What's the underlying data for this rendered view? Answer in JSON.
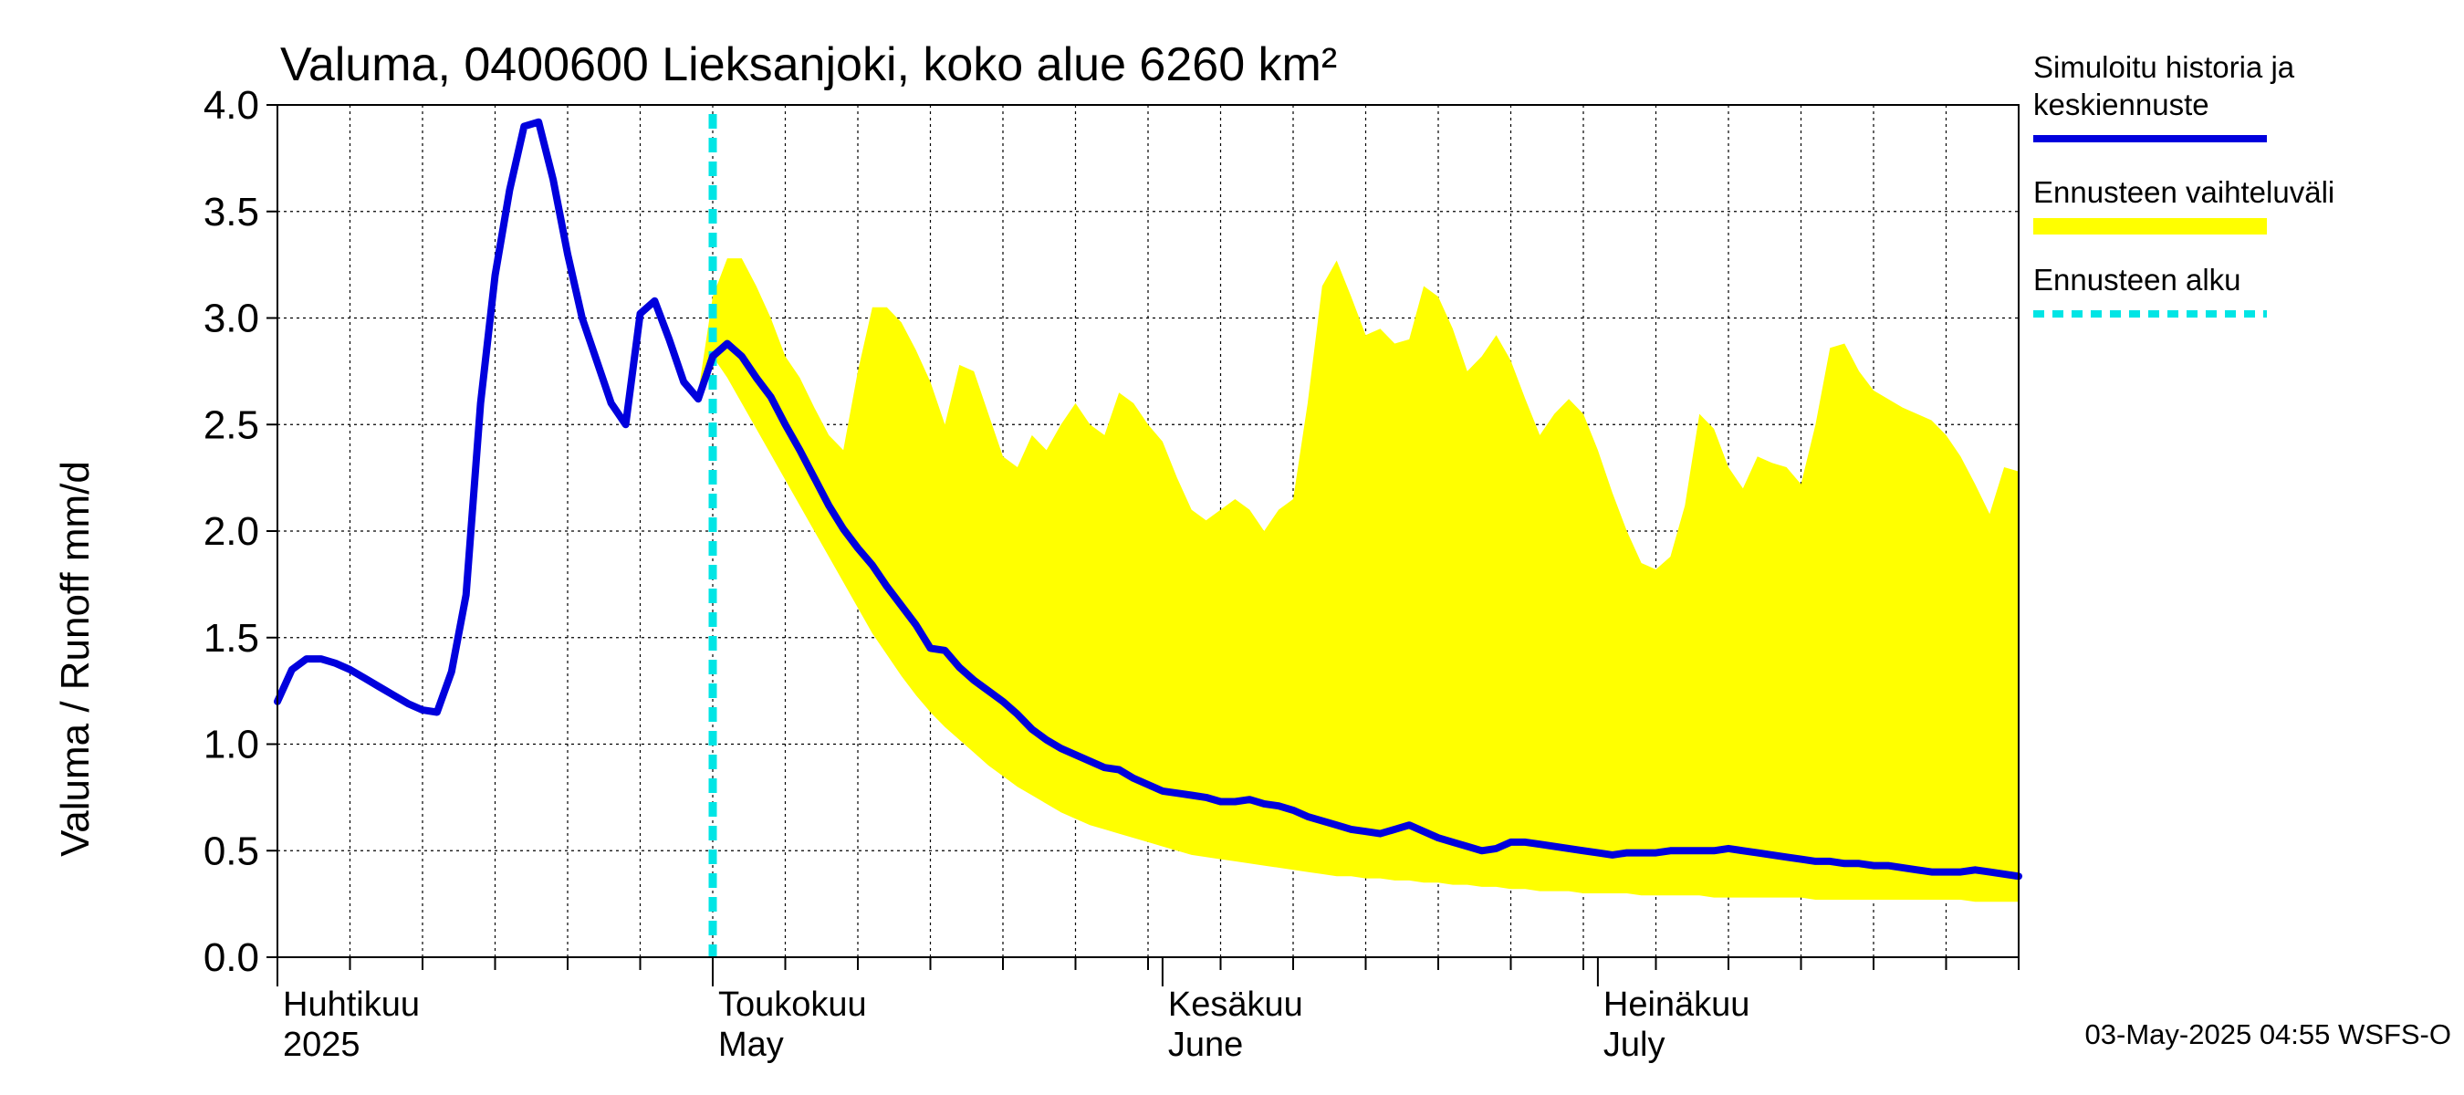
{
  "chart_data": {
    "type": "area",
    "title": "Valuma, 0400600 Lieksanjoki, koko alue 6260 km²",
    "ylabel": "Valuma / Runoff     mm/d",
    "xlabel": "",
    "ylim": [
      0,
      4
    ],
    "yticks": [
      "0.0",
      "0.5",
      "1.0",
      "1.5",
      "2.0",
      "2.5",
      "3.0",
      "3.5",
      "4.0"
    ],
    "x_unit": "day offset from 2025-03-26",
    "x_range": [
      0,
      120
    ],
    "forecast_start_day": 30,
    "month_labels": [
      {
        "day": 0,
        "fi": "Huhtikuu",
        "en": "2025"
      },
      {
        "day": 30,
        "fi": "Toukokuu",
        "en": "May"
      },
      {
        "day": 61,
        "fi": "Kesäkuu",
        "en": "June"
      },
      {
        "day": 91,
        "fi": "Heinäkuu",
        "en": "July"
      }
    ],
    "series": [
      {
        "name": "Simuloitu historia ja keskiennuste",
        "color": "#0000dd",
        "x": [
          0,
          1,
          2,
          3,
          4,
          5,
          6,
          7,
          8,
          9,
          10,
          11,
          12,
          13,
          14,
          15,
          16,
          17,
          18,
          19,
          20,
          21,
          22,
          23,
          24,
          25,
          26,
          27,
          28,
          29,
          30,
          31,
          32,
          33,
          34,
          35,
          36,
          37,
          38,
          39,
          40,
          41,
          42,
          43,
          44,
          45,
          46,
          47,
          48,
          49,
          50,
          51,
          52,
          53,
          54,
          55,
          56,
          57,
          58,
          59,
          60,
          61,
          62,
          63,
          64,
          65,
          66,
          67,
          68,
          69,
          70,
          71,
          72,
          73,
          74,
          75,
          76,
          77,
          78,
          79,
          80,
          81,
          82,
          83,
          84,
          85,
          86,
          87,
          88,
          89,
          90,
          91,
          92,
          93,
          94,
          95,
          96,
          97,
          98,
          99,
          100,
          101,
          102,
          103,
          104,
          105,
          106,
          107,
          108,
          109,
          110,
          111,
          112,
          113,
          114,
          115,
          116,
          117,
          118,
          119,
          120
        ],
        "values": [
          1.2,
          1.35,
          1.4,
          1.4,
          1.38,
          1.35,
          1.31,
          1.27,
          1.23,
          1.19,
          1.16,
          1.15,
          1.34,
          1.7,
          2.6,
          3.2,
          3.6,
          3.9,
          3.92,
          3.65,
          3.3,
          3.0,
          2.8,
          2.6,
          2.5,
          3.02,
          3.08,
          2.9,
          2.7,
          2.62,
          2.82,
          2.88,
          2.82,
          2.72,
          2.63,
          2.5,
          2.38,
          2.25,
          2.12,
          2.01,
          1.92,
          1.84,
          1.74,
          1.65,
          1.56,
          1.45,
          1.44,
          1.36,
          1.3,
          1.25,
          1.2,
          1.14,
          1.07,
          1.02,
          0.98,
          0.95,
          0.92,
          0.89,
          0.88,
          0.84,
          0.81,
          0.78,
          0.77,
          0.76,
          0.75,
          0.73,
          0.73,
          0.74,
          0.72,
          0.71,
          0.69,
          0.66,
          0.64,
          0.62,
          0.6,
          0.59,
          0.58,
          0.6,
          0.62,
          0.59,
          0.56,
          0.54,
          0.52,
          0.5,
          0.51,
          0.54,
          0.54,
          0.53,
          0.52,
          0.51,
          0.5,
          0.49,
          0.48,
          0.49,
          0.49,
          0.49,
          0.5,
          0.5,
          0.5,
          0.5,
          0.51,
          0.5,
          0.49,
          0.48,
          0.47,
          0.46,
          0.45,
          0.45,
          0.44,
          0.44,
          0.43,
          0.43,
          0.42,
          0.41,
          0.4,
          0.4,
          0.4,
          0.41,
          0.4,
          0.39,
          0.38
        ]
      },
      {
        "name": "Ennusteen vaihteluväli",
        "color": "#ffff00",
        "x": [
          29,
          30,
          31,
          32,
          33,
          34,
          35,
          36,
          37,
          38,
          39,
          40,
          41,
          42,
          43,
          44,
          45,
          46,
          47,
          48,
          49,
          50,
          51,
          52,
          53,
          54,
          55,
          56,
          57,
          58,
          59,
          60,
          61,
          62,
          63,
          64,
          65,
          66,
          67,
          68,
          69,
          70,
          71,
          72,
          73,
          74,
          75,
          76,
          77,
          78,
          79,
          80,
          81,
          82,
          83,
          84,
          85,
          86,
          87,
          88,
          89,
          90,
          91,
          92,
          93,
          94,
          95,
          96,
          97,
          98,
          99,
          100,
          101,
          102,
          103,
          104,
          105,
          106,
          107,
          108,
          109,
          110,
          111,
          112,
          113,
          114,
          115,
          116,
          117,
          118,
          119,
          120
        ],
        "upper": [
          2.65,
          3.1,
          3.28,
          3.28,
          3.15,
          3.0,
          2.82,
          2.72,
          2.58,
          2.45,
          2.38,
          2.75,
          3.05,
          3.05,
          2.98,
          2.85,
          2.7,
          2.5,
          2.78,
          2.75,
          2.55,
          2.35,
          2.3,
          2.45,
          2.38,
          2.5,
          2.6,
          2.5,
          2.45,
          2.65,
          2.6,
          2.5,
          2.42,
          2.25,
          2.1,
          2.05,
          2.1,
          2.15,
          2.1,
          2.0,
          2.1,
          2.15,
          2.6,
          3.15,
          3.27,
          3.1,
          2.92,
          2.95,
          2.88,
          2.9,
          3.15,
          3.1,
          2.95,
          2.75,
          2.82,
          2.92,
          2.8,
          2.62,
          2.45,
          2.55,
          2.62,
          2.55,
          2.38,
          2.18,
          2.0,
          1.85,
          1.82,
          1.88,
          2.12,
          2.55,
          2.48,
          2.3,
          2.2,
          2.35,
          2.32,
          2.3,
          2.22,
          2.5,
          2.86,
          2.88,
          2.75,
          2.66,
          2.62,
          2.58,
          2.55,
          2.52,
          2.45,
          2.35,
          2.22,
          2.08,
          2.3,
          2.28
        ],
        "lower": [
          2.6,
          2.82,
          2.72,
          2.6,
          2.48,
          2.36,
          2.24,
          2.12,
          2.0,
          1.88,
          1.76,
          1.64,
          1.52,
          1.42,
          1.32,
          1.23,
          1.15,
          1.08,
          1.02,
          0.96,
          0.9,
          0.85,
          0.8,
          0.76,
          0.72,
          0.68,
          0.65,
          0.62,
          0.6,
          0.58,
          0.56,
          0.54,
          0.52,
          0.5,
          0.48,
          0.47,
          0.46,
          0.45,
          0.44,
          0.43,
          0.42,
          0.41,
          0.4,
          0.39,
          0.38,
          0.38,
          0.37,
          0.37,
          0.36,
          0.36,
          0.35,
          0.35,
          0.34,
          0.34,
          0.33,
          0.33,
          0.32,
          0.32,
          0.31,
          0.31,
          0.31,
          0.3,
          0.3,
          0.3,
          0.3,
          0.29,
          0.29,
          0.29,
          0.29,
          0.29,
          0.28,
          0.28,
          0.28,
          0.28,
          0.28,
          0.28,
          0.28,
          0.27,
          0.27,
          0.27,
          0.27,
          0.27,
          0.27,
          0.27,
          0.27,
          0.27,
          0.27,
          0.27,
          0.26,
          0.26,
          0.26,
          0.26
        ]
      },
      {
        "name": "Ennusteen alku",
        "color": "#00e5e5",
        "x": [
          30
        ]
      }
    ],
    "legend": {
      "placement": "top-right",
      "entries": [
        {
          "lines": [
            "Simuloitu historia ja",
            "keskiennuste"
          ],
          "color": "#0000dd",
          "style": "solid"
        },
        {
          "lines": [
            "Ennusteen vaihteluväli"
          ],
          "color": "#ffff00",
          "style": "band"
        },
        {
          "lines": [
            "Ennusteen alku"
          ],
          "color": "#00e5e5",
          "style": "dashed"
        }
      ]
    },
    "timestamp": "03-May-2025 04:55 WSFS-O"
  }
}
